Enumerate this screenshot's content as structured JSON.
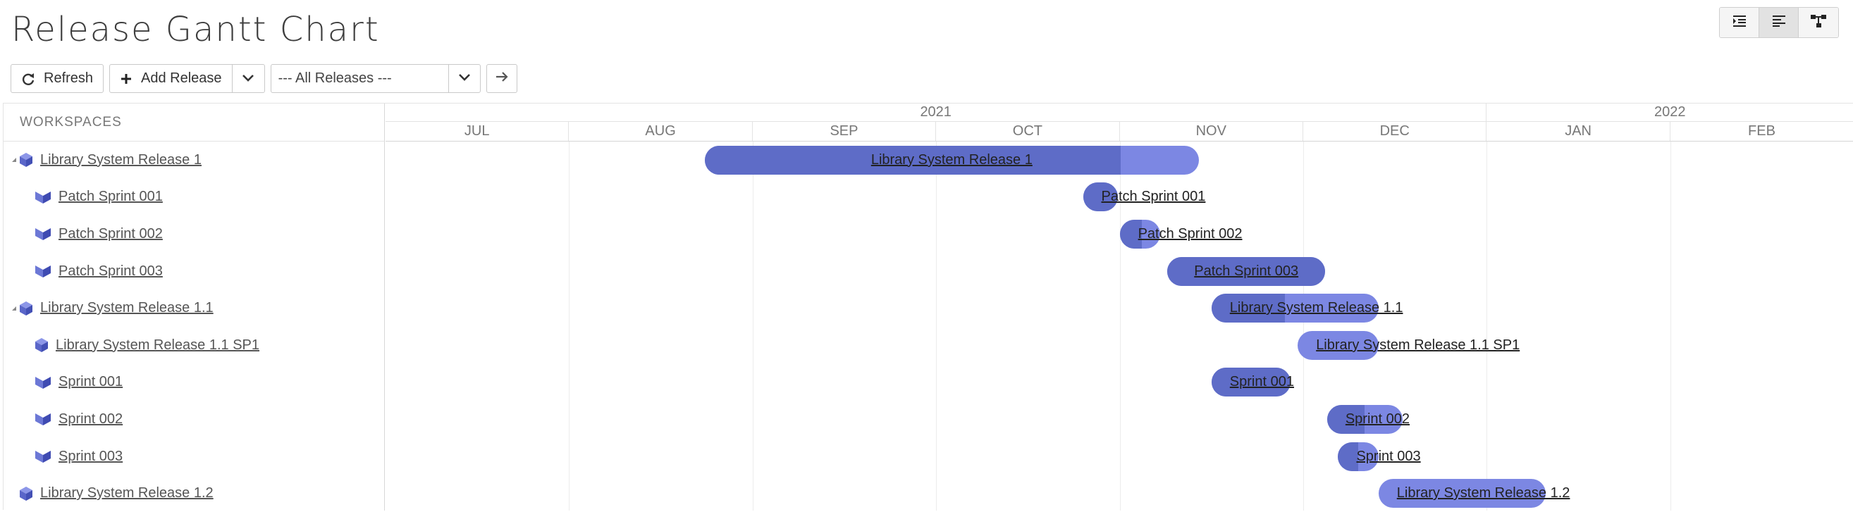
{
  "page": {
    "title": "Release Gantt Chart"
  },
  "view_switch": [
    {
      "name": "indent-view-icon",
      "active": false
    },
    {
      "name": "gantt-view-icon",
      "active": true
    },
    {
      "name": "hierarchy-view-icon",
      "active": false
    }
  ],
  "toolbar": {
    "refresh_label": "Refresh",
    "add_release_label": "Add Release",
    "release_filter_value": "--- All Releases ---"
  },
  "tree": {
    "header": "WORKSPACES",
    "rows": [
      {
        "label": "Library System Release 1",
        "kind": "release",
        "level": 0,
        "collapsible": true
      },
      {
        "label": "Patch Sprint 001",
        "kind": "sprint",
        "level": 1,
        "collapsible": false
      },
      {
        "label": "Patch Sprint 002",
        "kind": "sprint",
        "level": 1,
        "collapsible": false
      },
      {
        "label": "Patch Sprint 003",
        "kind": "sprint",
        "level": 1,
        "collapsible": false
      },
      {
        "label": "Library System Release 1.1",
        "kind": "release",
        "level": 0,
        "collapsible": true
      },
      {
        "label": "Library System Release 1.1 SP1",
        "kind": "release",
        "level": 1,
        "collapsible": false
      },
      {
        "label": "Sprint 001",
        "kind": "sprint",
        "level": 1,
        "collapsible": false
      },
      {
        "label": "Sprint 002",
        "kind": "sprint",
        "level": 1,
        "collapsible": false
      },
      {
        "label": "Sprint 003",
        "kind": "sprint",
        "level": 1,
        "collapsible": false
      },
      {
        "label": "Library System Release 1.2",
        "kind": "release",
        "level": 0,
        "collapsible": false
      }
    ]
  },
  "timeline": {
    "years": [
      {
        "label": "2021",
        "month_count": 6
      },
      {
        "label": "2022",
        "month_count": 2
      }
    ],
    "months": [
      "JUL",
      "AUG",
      "SEP",
      "OCT",
      "NOV",
      "DEC",
      "JAN",
      "FEB"
    ]
  },
  "bars": [
    {
      "label": "Library System Release 1",
      "start": 1.74,
      "end": 4.43,
      "progress": 0.842
    },
    {
      "label": "Patch Sprint 001",
      "start": 3.8,
      "end": 3.99,
      "progress": 1.0
    },
    {
      "label": "Patch Sprint 002",
      "start": 4.0,
      "end": 4.22,
      "progress": 0.55
    },
    {
      "label": "Patch Sprint 003",
      "start": 4.26,
      "end": 5.12,
      "progress": 1.0
    },
    {
      "label": "Library System Release 1.1",
      "start": 4.5,
      "end": 5.41,
      "progress": 0.44
    },
    {
      "label": "Library System Release 1.1 SP1",
      "start": 4.97,
      "end": 5.41,
      "progress": 0.0
    },
    {
      "label": "Sprint 001",
      "start": 4.5,
      "end": 4.93,
      "progress": 1.0
    },
    {
      "label": "Sprint 002",
      "start": 5.13,
      "end": 5.54,
      "progress": 0.5
    },
    {
      "label": "Sprint 003",
      "start": 5.19,
      "end": 5.41,
      "progress": 0.5
    },
    {
      "label": "Library System Release 1.2",
      "start": 5.41,
      "end": 6.32,
      "progress": 0.0
    }
  ],
  "colors": {
    "bar_fill": "#7c87e3",
    "bar_progress": "#5e6cc7",
    "release_icon": "#5a66c9",
    "sprint_icon": "#4a56bd"
  }
}
